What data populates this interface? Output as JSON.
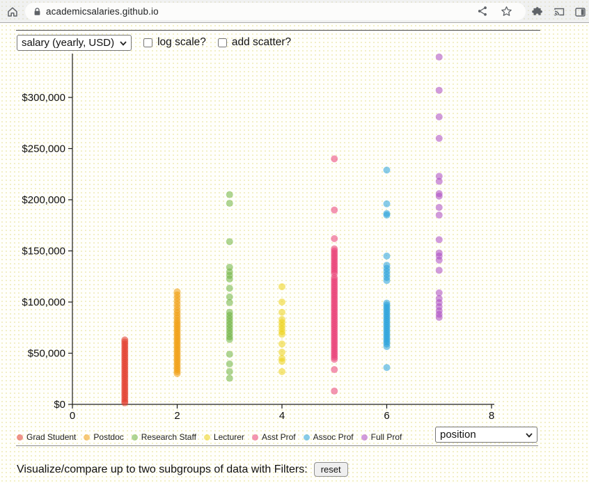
{
  "browser": {
    "url": "academicsalaries.github.io",
    "icons": [
      "home",
      "lock",
      "share",
      "bookmark-star",
      "extensions",
      "cast",
      "side-panel"
    ]
  },
  "toolbar": {
    "metric_select_value": "salary (yearly, USD)",
    "log_scale_label": "log scale?",
    "add_scatter_label": "add scatter?",
    "log_scale_checked": false,
    "add_scatter_checked": false
  },
  "group_select_value": "position",
  "filters": {
    "text": "Visualize/compare up to two subgroups of data with Filters:",
    "reset_label": "reset"
  },
  "chart_data": {
    "type": "scatter",
    "title": "",
    "xlabel": "",
    "ylabel": "",
    "xlim": [
      0,
      8
    ],
    "ylim": [
      0,
      345000
    ],
    "grid": false,
    "legend_position": "bottom",
    "marker_opacity": 0.55,
    "x_ticks": [
      0,
      2,
      4,
      6,
      8
    ],
    "y_tick_values": [
      0,
      50000,
      100000,
      150000,
      200000,
      250000,
      300000
    ],
    "y_tick_labels": [
      "$0",
      "$50,000",
      "$100,000",
      "$150,000",
      "$200,000",
      "$250,000",
      "$300,000"
    ],
    "series": [
      {
        "name": "Grad Student",
        "x": 1,
        "color": "#e23d2e",
        "values": [
          1500,
          3000,
          5000,
          7000,
          9000,
          11000,
          13000,
          15000,
          17000,
          19000,
          21000,
          23000,
          25000,
          27000,
          29000,
          31000,
          33000,
          35000,
          37000,
          39000,
          41000,
          43000,
          45000,
          47000,
          49000,
          51000,
          53000,
          55000,
          57000,
          59000,
          61000,
          63000
        ]
      },
      {
        "name": "Postdoc",
        "x": 2,
        "color": "#f19d0f",
        "values": [
          30000,
          32000,
          34000,
          36000,
          38000,
          40000,
          42000,
          44000,
          46000,
          48000,
          50000,
          52000,
          54000,
          56000,
          58000,
          60000,
          62000,
          64000,
          66000,
          68000,
          70000,
          72000,
          74000,
          76000,
          78000,
          80000,
          82000,
          84500,
          87000,
          89500,
          92000,
          95000,
          98000,
          101000,
          104000,
          107000,
          110000
        ]
      },
      {
        "name": "Research Staff",
        "x": 3,
        "color": "#6db33f",
        "values": [
          205000,
          196500,
          159000,
          134000,
          129500,
          126000,
          122500,
          113500,
          105000,
          99500,
          90000,
          87000,
          84000,
          81000,
          78000,
          75000,
          72000,
          69000,
          66000,
          63500,
          49000,
          39500,
          32000,
          25500
        ]
      },
      {
        "name": "Lecturer",
        "x": 4,
        "color": "#edd215",
        "values": [
          115000,
          100000,
          90000,
          83000,
          80000,
          77000,
          74000,
          71000,
          68500,
          59000,
          51000,
          45000,
          42000,
          32000
        ]
      },
      {
        "name": "Asst Prof",
        "x": 5,
        "color": "#ea3e77",
        "values": [
          240000,
          190000,
          162000,
          152000,
          150000,
          148000,
          146000,
          144000,
          142000,
          140000,
          138000,
          136000,
          134000,
          132000,
          130000,
          128000,
          124000,
          122000,
          120000,
          118000,
          116000,
          114000,
          112000,
          110000,
          108000,
          106000,
          104000,
          102000,
          100000,
          98000,
          96000,
          94000,
          92000,
          90000,
          88000,
          86000,
          84000,
          82000,
          80000,
          78000,
          76000,
          74000,
          72000,
          70000,
          68000,
          66000,
          64000,
          62000,
          60000,
          58000,
          56000,
          54000,
          52000,
          50000,
          48000,
          46000,
          44000,
          34000,
          13000
        ]
      },
      {
        "name": "Assoc Prof",
        "x": 6,
        "color": "#27a0da",
        "values": [
          229000,
          196000,
          186500,
          185000,
          145000,
          136000,
          133000,
          130000,
          127000,
          124000,
          121000,
          99000,
          97000,
          95000,
          93000,
          91000,
          89000,
          87000,
          85000,
          83000,
          81000,
          79000,
          77000,
          75000,
          73000,
          71000,
          69000,
          67000,
          65000,
          63000,
          61000,
          59000,
          56500,
          36000
        ]
      },
      {
        "name": "Full Prof",
        "x": 7,
        "color": "#ab49c2",
        "values": [
          339500,
          307000,
          281000,
          260000,
          223000,
          218000,
          206000,
          203500,
          192500,
          185000,
          161000,
          148000,
          145000,
          141000,
          131000,
          109000,
          103500,
          99500,
          95500,
          91500,
          88000,
          85000
        ]
      }
    ]
  }
}
